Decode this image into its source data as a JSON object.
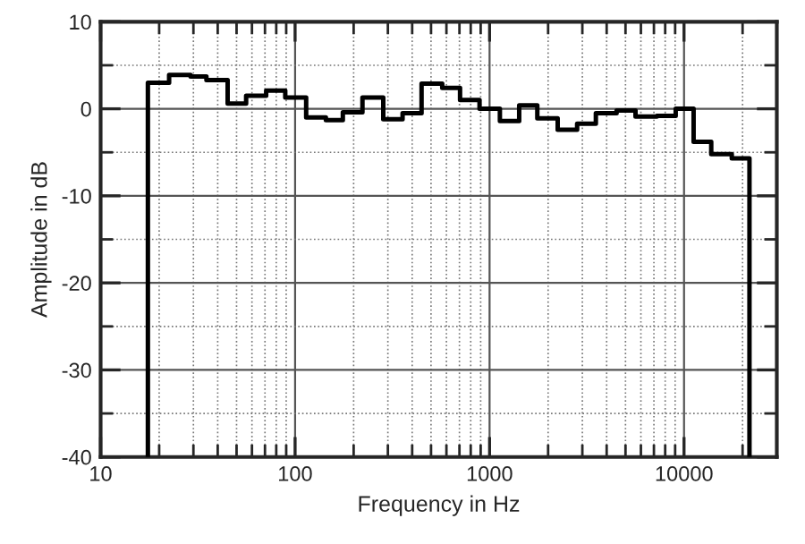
{
  "chart_data": {
    "type": "step",
    "xlabel": "Frequency in Hz",
    "ylabel": "Amplitude in dB",
    "log": "x",
    "grid": true,
    "xlim": [
      10,
      30000
    ],
    "ylim": [
      -40,
      10
    ],
    "xticks": [
      10,
      100,
      1000,
      10000
    ],
    "yticks": [
      -40,
      -30,
      -20,
      -10,
      0,
      10
    ],
    "series": [
      {
        "color": "#000000",
        "x": [
          17.5,
          17.5,
          22.5,
          29,
          35,
          45,
          56,
          71,
          89,
          114,
          144,
          176,
          222,
          284,
          357,
          447,
          571,
          705,
          888,
          1130,
          1420,
          1760,
          2240,
          2820,
          3520,
          4500,
          5630,
          7250,
          9060,
          11200,
          13800,
          17600,
          21700,
          21700
        ],
        "values": [
          -40,
          3.0,
          3.9,
          3.7,
          3.3,
          0.6,
          1.5,
          2.1,
          1.3,
          -1.0,
          -1.3,
          -0.4,
          1.3,
          -1.2,
          -0.5,
          2.9,
          2.4,
          1.0,
          0,
          -1.4,
          0.4,
          -1.1,
          -2.4,
          -1.7,
          -0.5,
          -0.2,
          -0.9,
          -0.8,
          0,
          -3.8,
          -5.2,
          -5.7,
          -5.7,
          -40
        ]
      }
    ]
  }
}
